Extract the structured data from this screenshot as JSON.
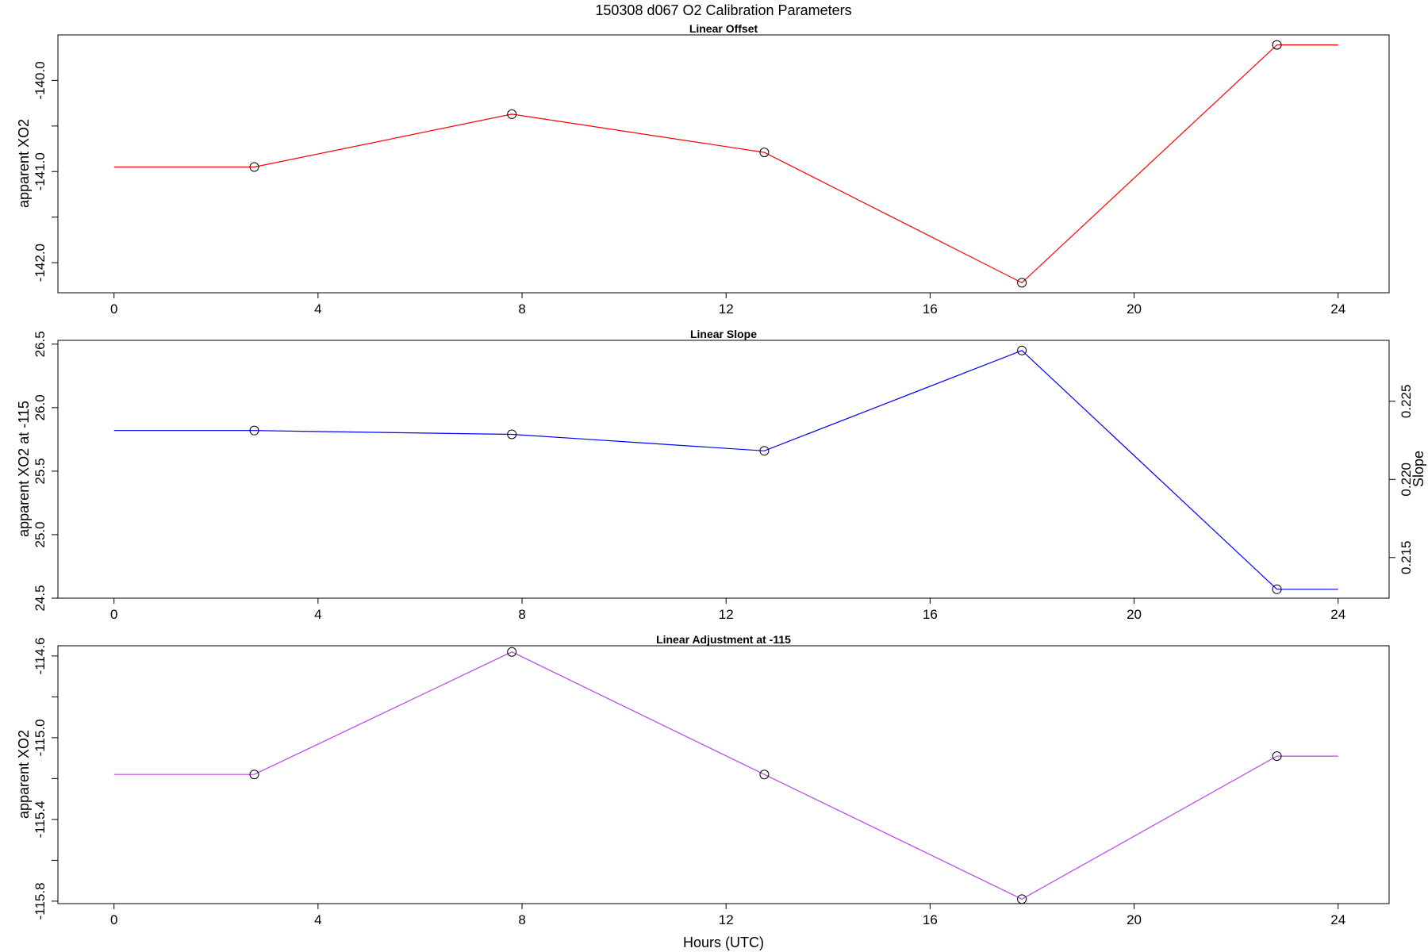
{
  "figure": {
    "title": "150308   d067   O2 Calibration Parameters",
    "xlabel": "Hours (UTC)"
  },
  "chart_data": [
    {
      "type": "line",
      "title": "Linear Offset",
      "xlabel": "",
      "ylabel": "apparent XO2",
      "xlim": [
        -1.1,
        25.0
      ],
      "ylim": [
        -142.33,
        -139.5
      ],
      "x_ticks": [
        "0",
        "4",
        "8",
        "12",
        "16",
        "20",
        "24"
      ],
      "y_ticks": [
        "-140.0",
        "",
        "-141.0",
        "",
        "-142.0"
      ],
      "y_tick_values": [
        -140.0,
        -140.5,
        -141.0,
        -141.5,
        -142.0
      ],
      "color": "#ff0000",
      "series": [
        {
          "x": [
            0,
            2.75,
            7.8,
            12.75,
            17.8,
            22.8,
            24
          ],
          "y": [
            -140.95,
            -140.95,
            -140.37,
            -140.79,
            -142.22,
            -139.61,
            -139.61
          ],
          "markers": [
            false,
            true,
            true,
            true,
            true,
            true,
            false
          ]
        }
      ],
      "grid": false
    },
    {
      "type": "line",
      "title": "Linear Slope",
      "xlabel": "",
      "ylabel": "apparent XO2 at -115",
      "ylabel_right": "Slope",
      "xlim": [
        -1.1,
        25.0
      ],
      "ylim": [
        24.5,
        26.53
      ],
      "x_ticks": [
        "0",
        "4",
        "8",
        "12",
        "16",
        "20",
        "24"
      ],
      "y_ticks": [
        "24.5",
        "25.0",
        "25.5",
        "26.0",
        "26.5"
      ],
      "y_tick_values": [
        24.5,
        25.0,
        25.5,
        26.0,
        26.5
      ],
      "y2_ticks": [
        "0.215",
        "0.220",
        "0.225"
      ],
      "y2_tick_values": [
        0.215,
        0.22,
        0.225
      ],
      "y2lim": [
        0.2124,
        0.2289
      ],
      "color": "#0000ff",
      "series": [
        {
          "x": [
            0,
            2.75,
            7.8,
            12.75,
            17.8,
            22.8,
            24
          ],
          "y": [
            25.82,
            25.82,
            25.79,
            25.66,
            26.45,
            24.57,
            24.57
          ],
          "markers": [
            false,
            true,
            true,
            true,
            true,
            true,
            false
          ]
        }
      ],
      "grid": false
    },
    {
      "type": "line",
      "title": "Linear Adjustment at -115",
      "xlabel": "Hours (UTC)",
      "ylabel": "apparent XO2",
      "xlim": [
        -1.1,
        25.0
      ],
      "ylim": [
        -115.812,
        -114.55
      ],
      "x_ticks": [
        "0",
        "4",
        "8",
        "12",
        "16",
        "20",
        "24"
      ],
      "y_ticks": [
        "-114.6",
        "",
        "-115.0",
        "",
        "-115.4",
        "",
        "-115.8"
      ],
      "y_tick_values": [
        -114.6,
        -114.8,
        -115.0,
        -115.2,
        -115.4,
        -115.6,
        -115.8
      ],
      "color": "#bb44ee",
      "series": [
        {
          "x": [
            0,
            2.75,
            7.8,
            12.75,
            17.8,
            22.8,
            24
          ],
          "y": [
            -115.18,
            -115.18,
            -114.58,
            -115.18,
            -115.79,
            -115.09,
            -115.09
          ],
          "markers": [
            false,
            true,
            true,
            true,
            true,
            true,
            false
          ]
        }
      ],
      "grid": false
    }
  ]
}
